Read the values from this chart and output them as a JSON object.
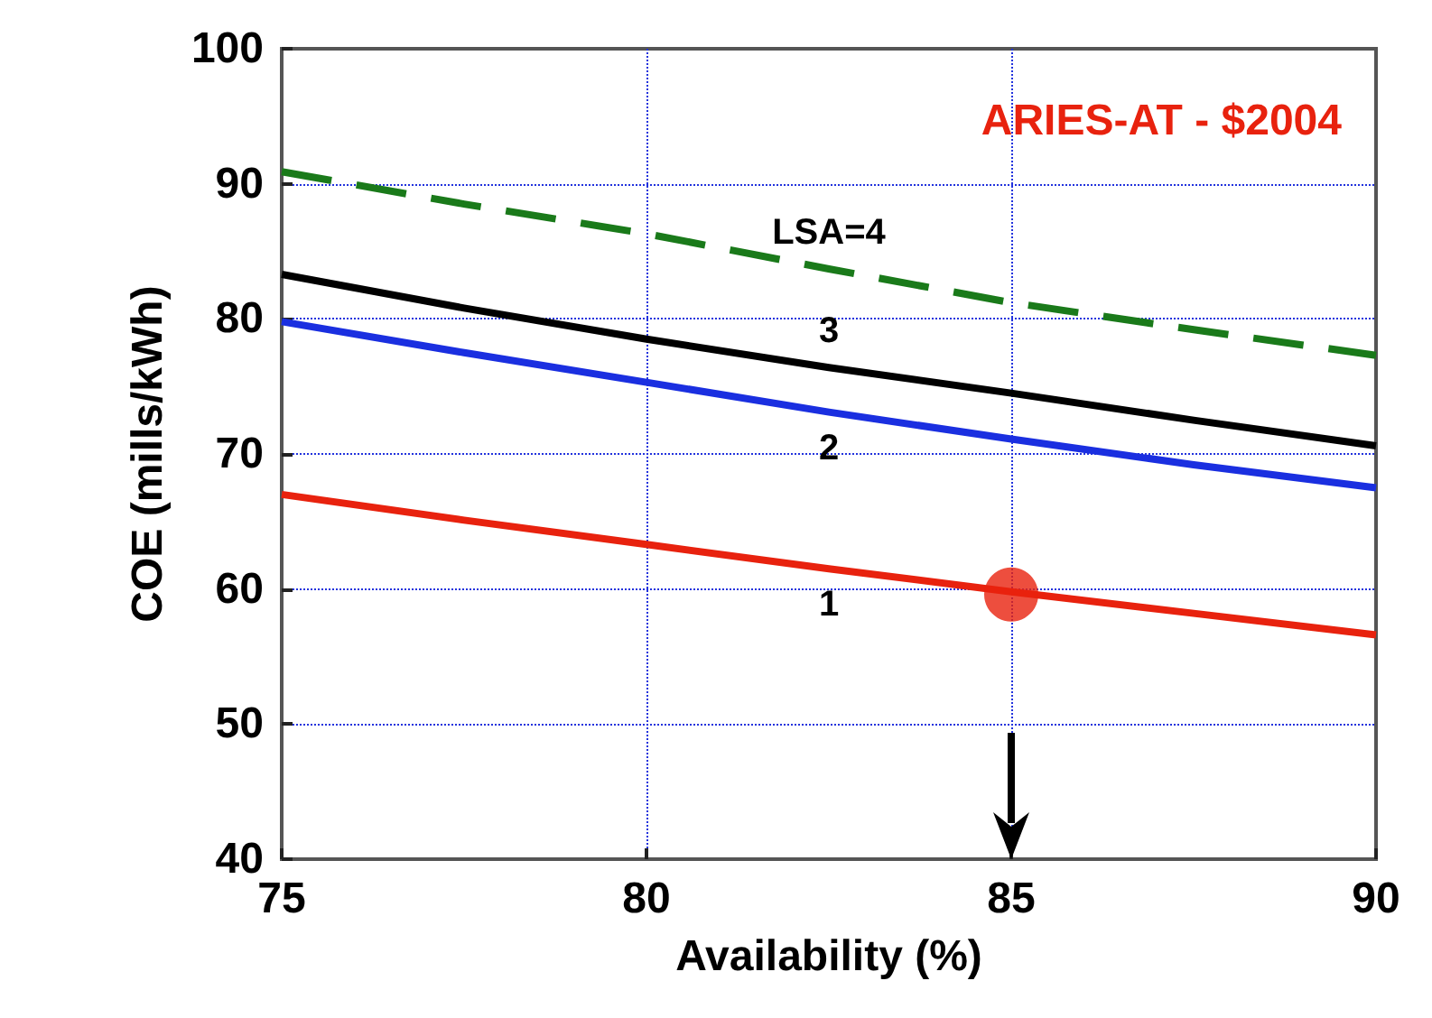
{
  "chart_data": {
    "type": "line",
    "title": "ARIES-AT - $2004",
    "xlabel": "Availability (%)",
    "ylabel": "COE (mills/kWh)",
    "x": [
      75,
      77.5,
      80,
      82.5,
      85,
      87.5,
      90
    ],
    "series": [
      {
        "name": "LSA=4",
        "color": "#1a7a1a",
        "line_style": "dashed",
        "values": [
          90.9,
          88.5,
          86.3,
          83.7,
          81.2,
          79.2,
          77.3
        ]
      },
      {
        "name": "3",
        "color": "#000000",
        "values": [
          83.3,
          80.8,
          78.5,
          76.4,
          74.5,
          72.5,
          70.6
        ]
      },
      {
        "name": "2",
        "color": "#1a2fe0",
        "values": [
          79.8,
          77.5,
          75.3,
          73.1,
          71.1,
          69.2,
          67.5
        ]
      },
      {
        "name": "1",
        "color": "#e8220e",
        "values": [
          67.0,
          65.1,
          63.3,
          61.5,
          59.8,
          58.2,
          56.6
        ]
      },
      {
        "type": "scatter",
        "marker": "circle",
        "color": "#e8220e",
        "x": [
          85
        ],
        "values": [
          59.6
        ]
      }
    ],
    "xlim": [
      75,
      90
    ],
    "xticks": [
      75,
      80,
      85,
      90
    ],
    "ylim": [
      40,
      100
    ],
    "yticks": [
      40,
      50,
      60,
      70,
      80,
      90,
      100
    ],
    "grid": true,
    "legend": false,
    "marker": "none",
    "line_style": "solid"
  }
}
